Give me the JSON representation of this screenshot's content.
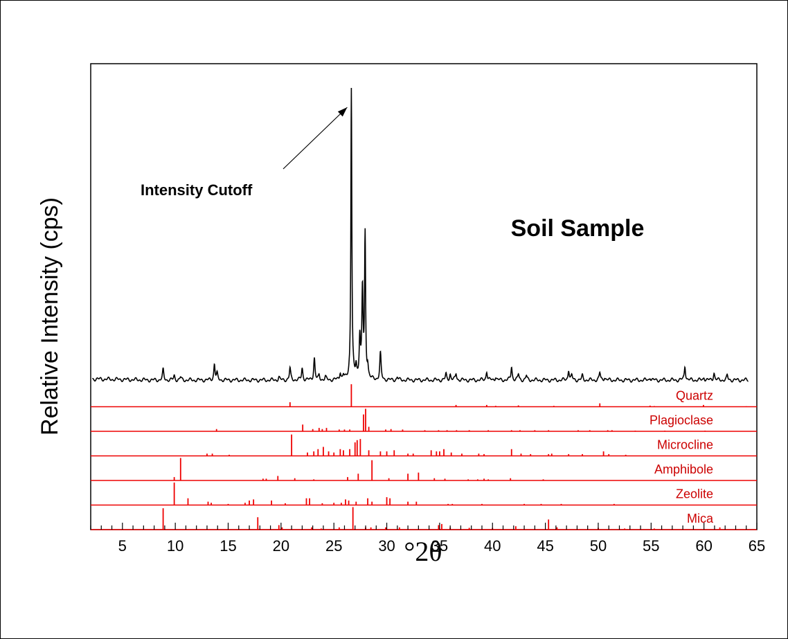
{
  "chart_data": {
    "type": "line",
    "title": "Soil Sample",
    "xlabel": "°2θ",
    "ylabel": "Relative Intensity (cps)",
    "xlim": [
      2,
      65
    ],
    "xticks": [
      5,
      10,
      15,
      20,
      25,
      30,
      35,
      40,
      45,
      50,
      55,
      60,
      65
    ],
    "ylim": [
      0,
      1
    ],
    "grid": false,
    "annotation": {
      "text": "Intensity Cutoff",
      "points_to": [
        26.65,
        1.0
      ]
    },
    "series": [
      {
        "color": "#000000",
        "baseline": 0.012,
        "peaks": [
          [
            8.85,
            0.035
          ],
          [
            9.9,
            0.015
          ],
          [
            10.5,
            0.01
          ],
          [
            13.7,
            0.055
          ],
          [
            13.95,
            0.02
          ],
          [
            19.8,
            0.01
          ],
          [
            20.85,
            0.04
          ],
          [
            22.0,
            0.04
          ],
          [
            23.15,
            0.075
          ],
          [
            23.6,
            0.015
          ],
          [
            24.2,
            0.01
          ],
          [
            25.6,
            0.025
          ],
          [
            25.9,
            0.015
          ],
          [
            26.65,
            0.99
          ],
          [
            27.1,
            0.04
          ],
          [
            27.45,
            0.14
          ],
          [
            27.7,
            0.3
          ],
          [
            27.95,
            0.48
          ],
          [
            28.2,
            0.04
          ],
          [
            29.4,
            0.09
          ],
          [
            31.0,
            0.01
          ],
          [
            35.6,
            0.02
          ],
          [
            36.0,
            0.02
          ],
          [
            36.55,
            0.022
          ],
          [
            39.45,
            0.03
          ],
          [
            40.3,
            0.012
          ],
          [
            41.8,
            0.045
          ],
          [
            42.45,
            0.02
          ],
          [
            43.2,
            0.015
          ],
          [
            47.2,
            0.035
          ],
          [
            47.5,
            0.015
          ],
          [
            48.5,
            0.015
          ],
          [
            50.15,
            0.025
          ],
          [
            50.6,
            0.01
          ],
          [
            54.9,
            0.01
          ],
          [
            58.2,
            0.048
          ],
          [
            60.0,
            0.01
          ],
          [
            60.95,
            0.025
          ],
          [
            62.2,
            0.015
          ]
        ]
      }
    ],
    "reference_phases": [
      {
        "name": "Quartz",
        "color": "#ee0000",
        "lines": [
          [
            20.85,
            0.2
          ],
          [
            26.65,
            1.0
          ],
          [
            36.55,
            0.08
          ],
          [
            39.45,
            0.08
          ],
          [
            40.3,
            0.04
          ],
          [
            42.45,
            0.06
          ],
          [
            45.8,
            0.04
          ],
          [
            50.15,
            0.15
          ],
          [
            54.9,
            0.05
          ],
          [
            55.3,
            0.03
          ],
          [
            59.95,
            0.08
          ],
          [
            64.0,
            0.02
          ]
        ]
      },
      {
        "name": "Plagioclase",
        "color": "#ee0000",
        "lines": [
          [
            13.9,
            0.1
          ],
          [
            22.05,
            0.3
          ],
          [
            23.0,
            0.1
          ],
          [
            23.6,
            0.15
          ],
          [
            23.9,
            0.1
          ],
          [
            24.3,
            0.15
          ],
          [
            25.5,
            0.08
          ],
          [
            26.0,
            0.08
          ],
          [
            26.5,
            0.08
          ],
          [
            27.8,
            0.75
          ],
          [
            28.0,
            1.0
          ],
          [
            28.3,
            0.2
          ],
          [
            29.9,
            0.08
          ],
          [
            30.4,
            0.1
          ],
          [
            31.5,
            0.08
          ],
          [
            33.6,
            0.05
          ],
          [
            34.9,
            0.05
          ],
          [
            35.7,
            0.05
          ],
          [
            36.6,
            0.05
          ],
          [
            37.8,
            0.05
          ],
          [
            39.6,
            0.05
          ],
          [
            41.8,
            0.05
          ],
          [
            42.6,
            0.05
          ],
          [
            44.0,
            0.05
          ],
          [
            45.3,
            0.05
          ],
          [
            48.1,
            0.05
          ],
          [
            49.2,
            0.05
          ],
          [
            50.9,
            0.05
          ],
          [
            51.3,
            0.05
          ],
          [
            53.5,
            0.03
          ],
          [
            56.3,
            0.03
          ],
          [
            60.1,
            0.03
          ]
        ]
      },
      {
        "name": "Microcline",
        "color": "#ee0000",
        "lines": [
          [
            13.0,
            0.1
          ],
          [
            13.5,
            0.1
          ],
          [
            15.1,
            0.05
          ],
          [
            21.0,
            0.95
          ],
          [
            22.5,
            0.15
          ],
          [
            23.1,
            0.2
          ],
          [
            23.5,
            0.3
          ],
          [
            24.0,
            0.4
          ],
          [
            24.5,
            0.2
          ],
          [
            25.0,
            0.15
          ],
          [
            25.6,
            0.3
          ],
          [
            25.9,
            0.25
          ],
          [
            26.5,
            0.3
          ],
          [
            27.0,
            0.6
          ],
          [
            27.2,
            0.7
          ],
          [
            27.5,
            0.75
          ],
          [
            28.3,
            0.25
          ],
          [
            29.4,
            0.2
          ],
          [
            30.0,
            0.2
          ],
          [
            30.7,
            0.25
          ],
          [
            32.0,
            0.1
          ],
          [
            32.5,
            0.1
          ],
          [
            34.2,
            0.25
          ],
          [
            34.7,
            0.2
          ],
          [
            35.0,
            0.2
          ],
          [
            35.4,
            0.3
          ],
          [
            36.1,
            0.15
          ],
          [
            37.1,
            0.1
          ],
          [
            38.7,
            0.1
          ],
          [
            39.2,
            0.08
          ],
          [
            41.8,
            0.3
          ],
          [
            42.7,
            0.1
          ],
          [
            43.6,
            0.08
          ],
          [
            45.3,
            0.08
          ],
          [
            45.6,
            0.1
          ],
          [
            47.2,
            0.08
          ],
          [
            48.5,
            0.08
          ],
          [
            50.5,
            0.2
          ],
          [
            51.0,
            0.08
          ],
          [
            52.6,
            0.05
          ]
        ]
      },
      {
        "name": "Amphibole",
        "color": "#ee0000",
        "lines": [
          [
            9.9,
            0.15
          ],
          [
            10.5,
            1.0
          ],
          [
            18.3,
            0.08
          ],
          [
            18.6,
            0.08
          ],
          [
            19.7,
            0.2
          ],
          [
            21.3,
            0.1
          ],
          [
            23.1,
            0.05
          ],
          [
            26.3,
            0.15
          ],
          [
            27.3,
            0.3
          ],
          [
            28.6,
            0.9
          ],
          [
            30.2,
            0.1
          ],
          [
            32.0,
            0.3
          ],
          [
            33.0,
            0.35
          ],
          [
            34.5,
            0.1
          ],
          [
            35.5,
            0.08
          ],
          [
            37.7,
            0.05
          ],
          [
            38.6,
            0.05
          ],
          [
            39.2,
            0.08
          ],
          [
            39.6,
            0.05
          ],
          [
            41.7,
            0.1
          ],
          [
            44.8,
            0.05
          ]
        ]
      },
      {
        "name": "Zeolite",
        "color": "#ee0000",
        "lines": [
          [
            9.9,
            1.0
          ],
          [
            11.2,
            0.3
          ],
          [
            13.1,
            0.15
          ],
          [
            13.4,
            0.1
          ],
          [
            15.0,
            0.05
          ],
          [
            16.6,
            0.1
          ],
          [
            17.0,
            0.2
          ],
          [
            17.4,
            0.25
          ],
          [
            19.1,
            0.2
          ],
          [
            20.4,
            0.08
          ],
          [
            22.4,
            0.3
          ],
          [
            22.7,
            0.3
          ],
          [
            23.9,
            0.08
          ],
          [
            25.0,
            0.1
          ],
          [
            25.7,
            0.1
          ],
          [
            26.1,
            0.25
          ],
          [
            26.4,
            0.2
          ],
          [
            27.1,
            0.15
          ],
          [
            28.2,
            0.3
          ],
          [
            28.6,
            0.15
          ],
          [
            30.0,
            0.35
          ],
          [
            30.3,
            0.3
          ],
          [
            32.0,
            0.15
          ],
          [
            32.8,
            0.15
          ],
          [
            35.8,
            0.05
          ],
          [
            36.2,
            0.05
          ],
          [
            39.0,
            0.05
          ],
          [
            43.0,
            0.05
          ],
          [
            44.6,
            0.05
          ],
          [
            46.5,
            0.05
          ],
          [
            51.5,
            0.05
          ]
        ]
      },
      {
        "name": "Mica",
        "color": "#ee0000",
        "lines": [
          [
            8.85,
            0.95
          ],
          [
            17.8,
            0.55
          ],
          [
            19.8,
            0.2
          ],
          [
            20.1,
            0.1
          ],
          [
            22.9,
            0.1
          ],
          [
            23.8,
            0.05
          ],
          [
            25.5,
            0.1
          ],
          [
            26.8,
            1.0
          ],
          [
            28.0,
            0.1
          ],
          [
            28.5,
            0.1
          ],
          [
            29.9,
            0.1
          ],
          [
            31.2,
            0.1
          ],
          [
            34.9,
            0.2
          ],
          [
            35.2,
            0.25
          ],
          [
            36.0,
            0.1
          ],
          [
            37.8,
            0.08
          ],
          [
            40.0,
            0.08
          ],
          [
            42.2,
            0.15
          ],
          [
            45.3,
            0.45
          ],
          [
            46.1,
            0.1
          ],
          [
            50.0,
            0.08
          ],
          [
            52.5,
            0.05
          ],
          [
            55.3,
            0.05
          ],
          [
            61.5,
            0.1
          ]
        ]
      }
    ]
  }
}
